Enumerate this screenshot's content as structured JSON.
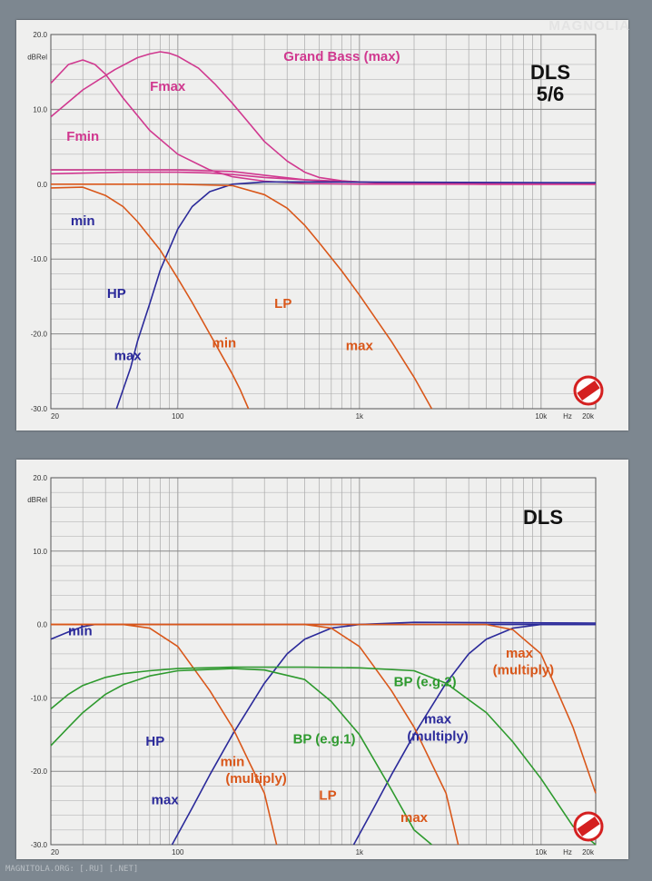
{
  "watermark": "MAGNOLIA",
  "footer": "MAGNITOLA.ORG: [.RU] [.NET]",
  "colors": {
    "hp": "#2b2a9a",
    "lp": "#d9571a",
    "gb": "#d0388f",
    "bp": "#2e9a2e",
    "grid": "#aaaaaa",
    "axis": "#555555"
  },
  "chart_data": [
    {
      "type": "line",
      "title": "DLS 5/6",
      "title_lines": [
        "DLS",
        "5/6"
      ],
      "ylabel": "dBRel",
      "x_scale": "log",
      "xlim": [
        20,
        20000
      ],
      "ylim": [
        -30,
        20
      ],
      "y_ticks": [
        20,
        10,
        0,
        -10,
        -20,
        -30
      ],
      "y_tick_labels": [
        "20.0",
        "10.0",
        "0.0",
        "-10.0",
        "-20.0",
        "-30.0"
      ],
      "x_ticks": [
        20,
        100,
        1000,
        10000,
        20000
      ],
      "x_tick_labels": [
        "20",
        "100",
        "1k",
        "10k",
        "20k"
      ],
      "x_unit": "Hz",
      "grid": true,
      "series": [
        {
          "name": "Grand Bass (max)",
          "color_key": "gb",
          "x": [
            20,
            30,
            45,
            60,
            70,
            80,
            90,
            100,
            130,
            160,
            200,
            250,
            300,
            400,
            500,
            600,
            800,
            1000,
            1500,
            2000,
            5000,
            20000
          ],
          "y": [
            9,
            12.6,
            15.3,
            16.9,
            17.4,
            17.7,
            17.5,
            17.1,
            15.5,
            13.4,
            10.8,
            8,
            5.7,
            3.1,
            1.6,
            0.9,
            0.45,
            0.3,
            0.1,
            0.05,
            0,
            0
          ]
        },
        {
          "name": "Fmax",
          "color_key": "gb",
          "x": [
            20,
            25,
            30,
            35,
            40,
            50,
            70,
            100,
            150,
            200,
            300,
            500,
            1000,
            3000,
            20000
          ],
          "y": [
            13.5,
            16,
            16.6,
            16,
            14.7,
            11.5,
            7.2,
            4,
            1.9,
            1,
            0.4,
            0.1,
            0,
            0,
            0
          ]
        },
        {
          "name": "Fmin",
          "color_key": "gb",
          "x": [
            20,
            50,
            100,
            150,
            200,
            300,
            500,
            700,
            1000,
            2000,
            5000,
            20000
          ],
          "y": [
            1.4,
            1.6,
            1.6,
            1.5,
            1.3,
            0.9,
            0.6,
            0.4,
            0.25,
            0.1,
            0,
            0
          ]
        },
        {
          "name": "",
          "color_key": "gb",
          "x": [
            20,
            100,
            200,
            300,
            500,
            1000,
            2000,
            20000
          ],
          "y": [
            1.9,
            1.9,
            1.7,
            1.2,
            0.6,
            0.3,
            0.1,
            0
          ]
        },
        {
          "name": "HP max",
          "color_key": "hp",
          "x": [
            46,
            55,
            60,
            70,
            80,
            100,
            120,
            150,
            200,
            300,
            500,
            20000
          ],
          "y": [
            -30,
            -24.5,
            -21,
            -16,
            -11.5,
            -6,
            -3,
            -1,
            0,
            0.3,
            0.3,
            0.2
          ]
        },
        {
          "name": "LP min",
          "color_key": "lp",
          "x": [
            20,
            30,
            40,
            50,
            60,
            80,
            100,
            120,
            150,
            200,
            220,
            245
          ],
          "y": [
            -0.5,
            -0.4,
            -1.5,
            -3,
            -5,
            -8.8,
            -12.6,
            -15.8,
            -20,
            -25.4,
            -27.4,
            -30
          ]
        },
        {
          "name": "LP max",
          "color_key": "lp",
          "x": [
            20,
            100,
            200,
            300,
            400,
            500,
            600,
            800,
            1000,
            1500,
            2000,
            2500
          ],
          "y": [
            0,
            0,
            -0.2,
            -1.4,
            -3.2,
            -5.5,
            -7.8,
            -11.6,
            -14.8,
            -21,
            -25.8,
            -30
          ]
        }
      ],
      "annotations": [
        {
          "text": "Grand Bass (max)",
          "color_key": "gb",
          "x": 800,
          "y": 16.5
        },
        {
          "text": "Fmax",
          "color_key": "gb",
          "x": 88,
          "y": 12.5
        },
        {
          "text": "Fmin",
          "color_key": "gb",
          "x": 30,
          "y": 5.8
        },
        {
          "text": "min",
          "color_key": "hp",
          "x": 30,
          "y": -5.5
        },
        {
          "text": "HP",
          "color_key": "hp",
          "x": 46,
          "y": -15.2
        },
        {
          "text": "max",
          "color_key": "hp",
          "x": 53,
          "y": -23.5
        },
        {
          "text": "LP",
          "color_key": "lp",
          "x": 380,
          "y": -16.5
        },
        {
          "text": "min",
          "color_key": "lp",
          "x": 180,
          "y": -21.8
        },
        {
          "text": "max",
          "color_key": "lp",
          "x": 1000,
          "y": -22.2
        }
      ]
    },
    {
      "type": "line",
      "title": "DLS",
      "title_lines": [
        "DLS"
      ],
      "ylabel": "dBRel",
      "x_scale": "log",
      "xlim": [
        20,
        20000
      ],
      "ylim": [
        -30,
        20
      ],
      "y_ticks": [
        20,
        10,
        0,
        -10,
        -20,
        -30
      ],
      "y_tick_labels": [
        "20.0",
        "10.0",
        "0.0",
        "-10.0",
        "-20.0",
        "-30.0"
      ],
      "x_ticks": [
        20,
        100,
        1000,
        10000,
        20000
      ],
      "x_tick_labels": [
        "20",
        "100",
        "1k",
        "10k",
        "20k"
      ],
      "x_unit": "Hz",
      "grid": true,
      "series": [
        {
          "name": "HP min",
          "color_key": "hp",
          "x": [
            20,
            25,
            30,
            35,
            40,
            50,
            60,
            80,
            100,
            20000
          ],
          "y": [
            -2,
            -1,
            -0.3,
            0,
            0,
            0,
            0,
            0,
            0,
            0
          ]
        },
        {
          "name": "HP max",
          "color_key": "hp",
          "x": [
            93,
            120,
            150,
            200,
            300,
            400,
            500,
            700,
            1000,
            2000,
            20000
          ],
          "y": [
            -30,
            -25,
            -20.5,
            -15,
            -8,
            -4,
            -2,
            -0.5,
            0,
            0.3,
            0.2
          ]
        },
        {
          "name": "HP max (multiply)",
          "color_key": "hp",
          "x": [
            930,
            1200,
            1500,
            2000,
            3000,
            4000,
            5000,
            7000,
            10000,
            20000
          ],
          "y": [
            -30,
            -25,
            -20.5,
            -15,
            -8,
            -4,
            -2,
            -0.5,
            0,
            0
          ]
        },
        {
          "name": "LP max",
          "color_key": "lp",
          "x": [
            20,
            500,
            700,
            1000,
            1500,
            2000,
            3000,
            3500
          ],
          "y": [
            0,
            0,
            -0.5,
            -3,
            -9,
            -14,
            -23,
            -30
          ]
        },
        {
          "name": "LP max (multiply)",
          "color_key": "lp",
          "x": [
            20,
            5000,
            7000,
            10000,
            15000,
            20000
          ],
          "y": [
            0,
            0,
            -0.7,
            -4,
            -14,
            -23
          ]
        },
        {
          "name": "LP min",
          "color_key": "lp",
          "x": [
            20,
            50,
            70,
            100,
            150,
            200,
            250,
            300,
            350
          ],
          "y": [
            0,
            0,
            -0.5,
            -3,
            -9,
            -14,
            -19,
            -23,
            -30
          ]
        },
        {
          "name": "BP (e.g.1)",
          "color_key": "bp",
          "x": [
            20,
            25,
            30,
            40,
            50,
            70,
            100,
            200,
            300,
            500,
            700,
            1000,
            1500,
            2000,
            2500
          ],
          "y": [
            -16.5,
            -14,
            -12,
            -9.5,
            -8.2,
            -7,
            -6.3,
            -6,
            -6.2,
            -7.5,
            -10.5,
            -15,
            -22.5,
            -28,
            -30
          ]
        },
        {
          "name": "BP (e.g.2)",
          "color_key": "bp",
          "x": [
            20,
            25,
            30,
            40,
            50,
            70,
            100,
            200,
            500,
            1000,
            2000,
            3000,
            5000,
            7000,
            10000,
            15000,
            20000
          ],
          "y": [
            -11.5,
            -9.5,
            -8.3,
            -7.2,
            -6.7,
            -6.3,
            -6,
            -5.8,
            -5.8,
            -5.9,
            -6.3,
            -8,
            -12,
            -16,
            -21,
            -27.5,
            -30
          ]
        }
      ],
      "annotations": [
        {
          "text": "min",
          "color_key": "hp",
          "x": 29,
          "y": -1.5
        },
        {
          "text": "HP",
          "color_key": "hp",
          "x": 75,
          "y": -16.5
        },
        {
          "text": "max",
          "color_key": "hp",
          "x": 85,
          "y": -24.5
        },
        {
          "text": "min",
          "color_key": "lp",
          "x": 200,
          "y": -19.3
        },
        {
          "text": "(multiply)",
          "color_key": "lp",
          "x": 270,
          "y": -21.6
        },
        {
          "text": "LP",
          "color_key": "lp",
          "x": 670,
          "y": -23.9
        },
        {
          "text": "max",
          "color_key": "lp",
          "x": 2000,
          "y": -26.9
        },
        {
          "text": "BP (e.g.1)",
          "color_key": "bp",
          "x": 640,
          "y": -16.2
        },
        {
          "text": "BP (e.g.2)",
          "color_key": "bp",
          "x": 2300,
          "y": -8.4
        },
        {
          "text": "max",
          "color_key": "hp",
          "x": 2700,
          "y": -13.5
        },
        {
          "text": "(multiply)",
          "color_key": "hp",
          "x": 2700,
          "y": -15.8
        },
        {
          "text": "max",
          "color_key": "lp",
          "x": 7600,
          "y": -4.5
        },
        {
          "text": "(multiply)",
          "color_key": "lp",
          "x": 8000,
          "y": -6.8
        }
      ]
    }
  ]
}
